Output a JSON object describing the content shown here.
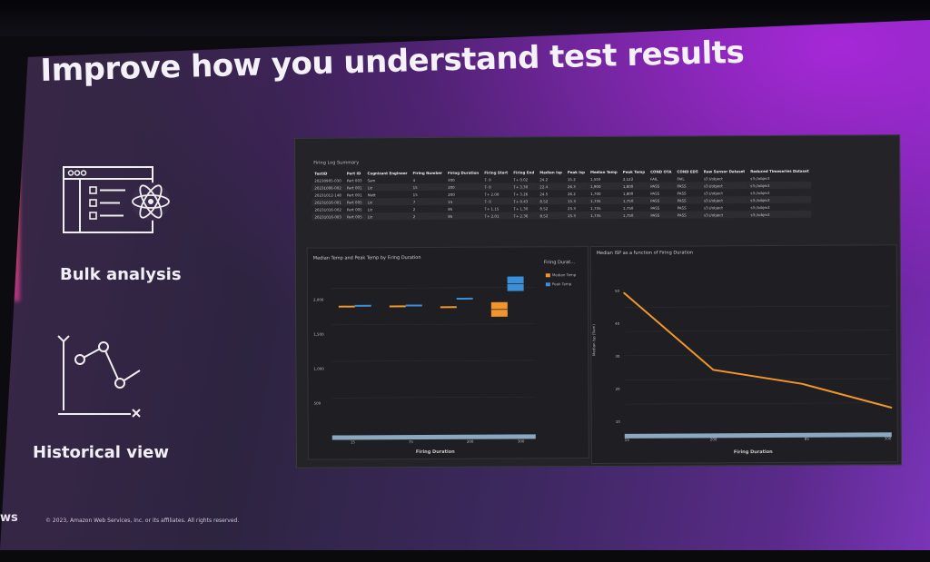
{
  "slide": {
    "title": "Improve how you understand test results",
    "features": [
      {
        "label": "Bulk analysis",
        "icon": "bulk-analysis-icon"
      },
      {
        "label": "Historical view",
        "icon": "historical-view-icon"
      }
    ],
    "footer": "© 2023, Amazon Web Services, Inc. or its affiliates. All rights reserved.",
    "logo": "ws",
    "accent_colors": [
      "#ff6a2a",
      "#7a34b8"
    ]
  },
  "dashboard": {
    "table": {
      "title": "Firing Log Summary",
      "headers": [
        "TestID",
        "Part ID",
        "Cognizant Engineer",
        "Firing Number",
        "Firing Duration",
        "Firing Start",
        "Firing End",
        "Median Isp",
        "Peak Isp",
        "Median Temp",
        "Peak Temp",
        "COND OTA",
        "COND EDS",
        "Raw Sensor Dataset",
        "Reduced Timeseries Dataset"
      ],
      "rows": [
        [
          "20230905-030",
          "Part 003",
          "Sam",
          "4",
          "300",
          "T- 0",
          "T+ 0.02",
          "24.2",
          "15.2",
          "1,503",
          "2,122",
          "FAIL",
          "FAIL",
          "s3://object",
          "s3://object"
        ],
        [
          "20231006-002",
          "Part 001",
          "Liz",
          "15",
          "200",
          "T- 0",
          "T+ 3.30",
          "22.4",
          "26.3",
          "1,900",
          "1,800",
          "PASS",
          "PASS",
          "s3://object",
          "s3://object"
        ],
        [
          "20231012-148",
          "Part 001",
          "Matt",
          "15",
          "200",
          "T+ 2.00",
          "T+ 3.26",
          "24.5",
          "26.2",
          "1,700",
          "1,800",
          "PASS",
          "PASS",
          "s3://object",
          "s3://object"
        ],
        [
          "20231016-001",
          "Part 005",
          "Liz",
          "7",
          "15",
          "T- 0",
          "T+ 0.43",
          "8.52",
          "15.3",
          "1,735",
          "1,750",
          "PASS",
          "PASS",
          "s3://object",
          "s3://object"
        ],
        [
          "20231016-002",
          "Part 005",
          "Liz",
          "2",
          "85",
          "T+ 1.15",
          "T+ 1.30",
          "8.52",
          "25.3",
          "1,735",
          "1,750",
          "PASS",
          "PASS",
          "s3://object",
          "s3://object"
        ],
        [
          "20231016-003",
          "Part 005",
          "Liz",
          "2",
          "85",
          "T+ 2.01",
          "T+ 2.36",
          "8.52",
          "25.3",
          "1,735",
          "1,750",
          "PASS",
          "PASS",
          "s3://object",
          "s3://object"
        ]
      ]
    },
    "box_chart": {
      "title": "Median Temp and Peak Temp by Firing Duration",
      "legend_title": "Firing Durat...",
      "xlabel": "Firing Duration",
      "y_ticks": [
        "2,000",
        "1,500",
        "1,000",
        "500"
      ],
      "x_ticks": [
        "15",
        "75",
        "200",
        "300"
      ]
    },
    "line_chart": {
      "title": "Median ISP as a function of Firing Duration",
      "ylabel": "Median Isp (Sum)",
      "xlabel": "Firing Duration",
      "y_ticks": [
        "50",
        "40",
        "30",
        "20",
        "10"
      ],
      "x_ticks": [
        "15",
        "200",
        "85",
        "300"
      ]
    }
  },
  "chart_data": [
    {
      "type": "box",
      "title": "Median Temp and Peak Temp by Firing Duration",
      "xlabel": "Firing Duration",
      "legend": "top-right",
      "series": [
        {
          "name": "Median Temp",
          "color": "#f0962c",
          "values": [
            1750,
            1750,
            1735,
            1700
          ]
        },
        {
          "name": "Peak Temp",
          "color": "#3b8fd9",
          "values": [
            1760,
            1760,
            1850,
            2050
          ]
        }
      ],
      "ylim": [
        0,
        2300
      ]
    },
    {
      "type": "line",
      "title": "Median ISP as a function of Firing Duration",
      "xlabel": "Firing Duration",
      "ylabel": "Median Isp (Sum)",
      "series": [
        {
          "color": "#f0962c",
          "values": [
            56,
            24,
            18,
            8
          ]
        }
      ],
      "ylim": [
        0,
        60
      ]
    }
  ]
}
